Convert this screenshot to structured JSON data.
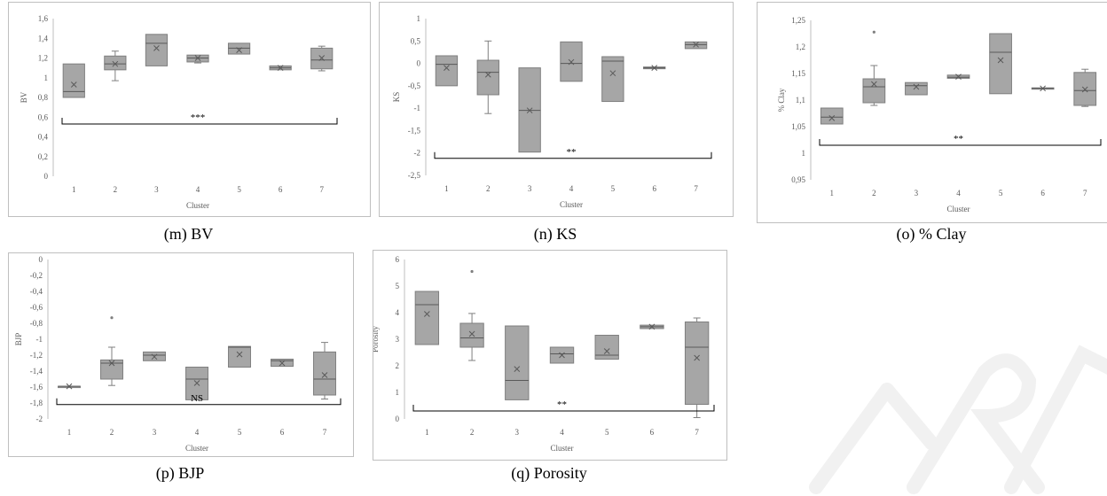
{
  "chart_data": [
    {
      "id": "m",
      "type": "boxplot",
      "caption": "(m) BV",
      "ylabel": "BV",
      "xlabel": "Cluster",
      "categories": [
        "1",
        "2",
        "3",
        "4",
        "5",
        "6",
        "7"
      ],
      "ylim": [
        0,
        1.6
      ],
      "yticks": [
        "0",
        "0,2",
        "0,4",
        "0,6",
        "0,8",
        "1",
        "1,2",
        "1,4",
        "1,6"
      ],
      "ytick_values": [
        0,
        0.2,
        0.4,
        0.6,
        0.8,
        1,
        1.2,
        1.4,
        1.6
      ],
      "boxes": [
        {
          "min": 0.8,
          "q1": 0.8,
          "median": 0.86,
          "q3": 1.14,
          "max": 1.14,
          "mean": 0.93
        },
        {
          "min": 0.97,
          "q1": 1.08,
          "median": 1.14,
          "q3": 1.22,
          "max": 1.27,
          "mean": 1.14
        },
        {
          "min": 1.12,
          "q1": 1.12,
          "median": 1.35,
          "q3": 1.44,
          "max": 1.44,
          "mean": 1.3
        },
        {
          "min": 1.15,
          "q1": 1.16,
          "median": 1.2,
          "q3": 1.23,
          "max": 1.23,
          "mean": 1.2
        },
        {
          "min": 1.24,
          "q1": 1.24,
          "median": 1.3,
          "q3": 1.35,
          "max": 1.35,
          "mean": 1.28
        },
        {
          "min": 1.08,
          "q1": 1.08,
          "median": 1.1,
          "q3": 1.12,
          "max": 1.12,
          "mean": 1.1
        },
        {
          "min": 1.07,
          "q1": 1.09,
          "median": 1.18,
          "q3": 1.3,
          "max": 1.32,
          "mean": 1.2
        }
      ],
      "outliers": [],
      "significance": "***",
      "bracket_y": 0.53
    },
    {
      "id": "n",
      "type": "boxplot",
      "caption": "(n) KS",
      "ylabel": "KS",
      "xlabel": "Cluster",
      "categories": [
        "1",
        "2",
        "3",
        "4",
        "5",
        "6",
        "7"
      ],
      "ylim": [
        -2.5,
        1
      ],
      "yticks": [
        "-2,5",
        "-2",
        "-1,5",
        "-1",
        "-0,5",
        "0",
        "0,5",
        "1"
      ],
      "ytick_values": [
        -2.5,
        -2,
        -1.5,
        -1,
        -0.5,
        0,
        0.5,
        1
      ],
      "boxes": [
        {
          "min": -0.5,
          "q1": -0.5,
          "median": -0.02,
          "q3": 0.17,
          "max": 0.17,
          "mean": -0.1
        },
        {
          "min": -1.12,
          "q1": -0.7,
          "median": -0.2,
          "q3": 0.07,
          "max": 0.5,
          "mean": -0.25
        },
        {
          "min": -1.98,
          "q1": -1.98,
          "median": -1.05,
          "q3": -0.1,
          "max": -0.1,
          "mean": -1.05
        },
        {
          "min": -0.4,
          "q1": -0.4,
          "median": 0.0,
          "q3": 0.48,
          "max": 0.48,
          "mean": 0.03
        },
        {
          "min": -0.85,
          "q1": -0.85,
          "median": 0.05,
          "q3": 0.15,
          "max": 0.15,
          "mean": -0.22
        },
        {
          "min": -0.12,
          "q1": -0.12,
          "median": -0.1,
          "q3": -0.08,
          "max": -0.08,
          "mean": -0.1
        },
        {
          "min": 0.33,
          "q1": 0.33,
          "median": 0.42,
          "q3": 0.48,
          "max": 0.48,
          "mean": 0.42
        }
      ],
      "outliers": [],
      "significance": "**",
      "bracket_y": -2.12
    },
    {
      "id": "o",
      "type": "boxplot",
      "caption": "(o) % Clay",
      "ylabel": "% Clay",
      "xlabel": "Cluster",
      "categories": [
        "1",
        "2",
        "3",
        "4",
        "5",
        "6",
        "7"
      ],
      "ylim": [
        0.95,
        1.25
      ],
      "yticks": [
        "0,95",
        "1",
        "1,05",
        "1,1",
        "1,15",
        "1,2",
        "1,25"
      ],
      "ytick_values": [
        0.95,
        1,
        1.05,
        1.1,
        1.15,
        1.2,
        1.25
      ],
      "boxes": [
        {
          "min": 1.055,
          "q1": 1.055,
          "median": 1.068,
          "q3": 1.085,
          "max": 1.085,
          "mean": 1.066
        },
        {
          "min": 1.09,
          "q1": 1.095,
          "median": 1.125,
          "q3": 1.14,
          "max": 1.165,
          "mean": 1.13
        },
        {
          "min": 1.11,
          "q1": 1.11,
          "median": 1.127,
          "q3": 1.133,
          "max": 1.133,
          "mean": 1.125
        },
        {
          "min": 1.141,
          "q1": 1.141,
          "median": 1.143,
          "q3": 1.147,
          "max": 1.147,
          "mean": 1.144
        },
        {
          "min": 1.112,
          "q1": 1.112,
          "median": 1.19,
          "q3": 1.225,
          "max": 1.225,
          "mean": 1.175
        },
        {
          "min": 1.121,
          "q1": 1.121,
          "median": 1.122,
          "q3": 1.123,
          "max": 1.123,
          "mean": 1.122
        },
        {
          "min": 1.088,
          "q1": 1.09,
          "median": 1.118,
          "q3": 1.152,
          "max": 1.158,
          "mean": 1.12
        }
      ],
      "outliers": [
        {
          "cluster": 2,
          "value": 1.228
        }
      ],
      "significance": "**",
      "bracket_y": 1.015
    },
    {
      "id": "p",
      "type": "boxplot",
      "caption": "(p) BJP",
      "ylabel": "BJP",
      "xlabel": "Cluster",
      "categories": [
        "1",
        "2",
        "3",
        "4",
        "5",
        "6",
        "7"
      ],
      "ylim": [
        -2,
        0
      ],
      "yticks": [
        "-2",
        "-1,8",
        "-1,6",
        "-1,4",
        "-1,2",
        "-1",
        "-0,8",
        "-0,6",
        "-0,4",
        "-0,2",
        "0"
      ],
      "ytick_values": [
        -2,
        -1.8,
        -1.6,
        -1.4,
        -1.2,
        -1,
        -0.8,
        -0.6,
        -0.4,
        -0.2,
        0
      ],
      "boxes": [
        {
          "min": -1.59,
          "q1": -1.59,
          "median": -1.59,
          "q3": -1.59,
          "max": -1.59,
          "mean": -1.59
        },
        {
          "min": -1.58,
          "q1": -1.5,
          "median": -1.3,
          "q3": -1.26,
          "max": -1.1,
          "mean": -1.3
        },
        {
          "min": -1.27,
          "q1": -1.27,
          "median": -1.2,
          "q3": -1.16,
          "max": -1.16,
          "mean": -1.22
        },
        {
          "min": -1.76,
          "q1": -1.76,
          "median": -1.5,
          "q3": -1.35,
          "max": -1.35,
          "mean": -1.55
        },
        {
          "min": -1.35,
          "q1": -1.35,
          "median": -1.1,
          "q3": -1.09,
          "max": -1.09,
          "mean": -1.19
        },
        {
          "min": -1.34,
          "q1": -1.34,
          "median": -1.27,
          "q3": -1.25,
          "max": -1.25,
          "mean": -1.3
        },
        {
          "min": -1.75,
          "q1": -1.7,
          "median": -1.5,
          "q3": -1.16,
          "max": -1.04,
          "mean": -1.45
        }
      ],
      "outliers": [
        {
          "cluster": 2,
          "value": -0.73
        }
      ],
      "significance": "NS",
      "bracket_y": -1.82
    },
    {
      "id": "q",
      "type": "boxplot",
      "caption": "(q) Porosity",
      "ylabel": "Porosity",
      "xlabel": "Cluster",
      "categories": [
        "1",
        "2",
        "3",
        "4",
        "5",
        "6",
        "7"
      ],
      "ylim": [
        0,
        6
      ],
      "yticks": [
        "0",
        "1",
        "2",
        "3",
        "4",
        "5",
        "6"
      ],
      "ytick_values": [
        0,
        1,
        2,
        3,
        4,
        5,
        6
      ],
      "boxes": [
        {
          "min": 2.8,
          "q1": 2.8,
          "median": 4.3,
          "q3": 4.8,
          "max": 4.8,
          "mean": 3.95
        },
        {
          "min": 2.2,
          "q1": 2.7,
          "median": 3.05,
          "q3": 3.6,
          "max": 3.97,
          "mean": 3.2
        },
        {
          "min": 0.72,
          "q1": 0.72,
          "median": 1.45,
          "q3": 3.5,
          "max": 3.5,
          "mean": 1.88
        },
        {
          "min": 2.1,
          "q1": 2.1,
          "median": 2.45,
          "q3": 2.7,
          "max": 2.7,
          "mean": 2.4
        },
        {
          "min": 2.25,
          "q1": 2.25,
          "median": 2.4,
          "q3": 3.15,
          "max": 3.15,
          "mean": 2.55
        },
        {
          "min": 3.4,
          "q1": 3.4,
          "median": 3.47,
          "q3": 3.53,
          "max": 3.53,
          "mean": 3.47
        },
        {
          "min": 0.05,
          "q1": 0.55,
          "median": 2.7,
          "q3": 3.65,
          "max": 3.8,
          "mean": 2.3
        }
      ],
      "outliers": [
        {
          "cluster": 2,
          "value": 5.55
        }
      ],
      "significance": "**",
      "bracket_y": 0.3
    }
  ]
}
